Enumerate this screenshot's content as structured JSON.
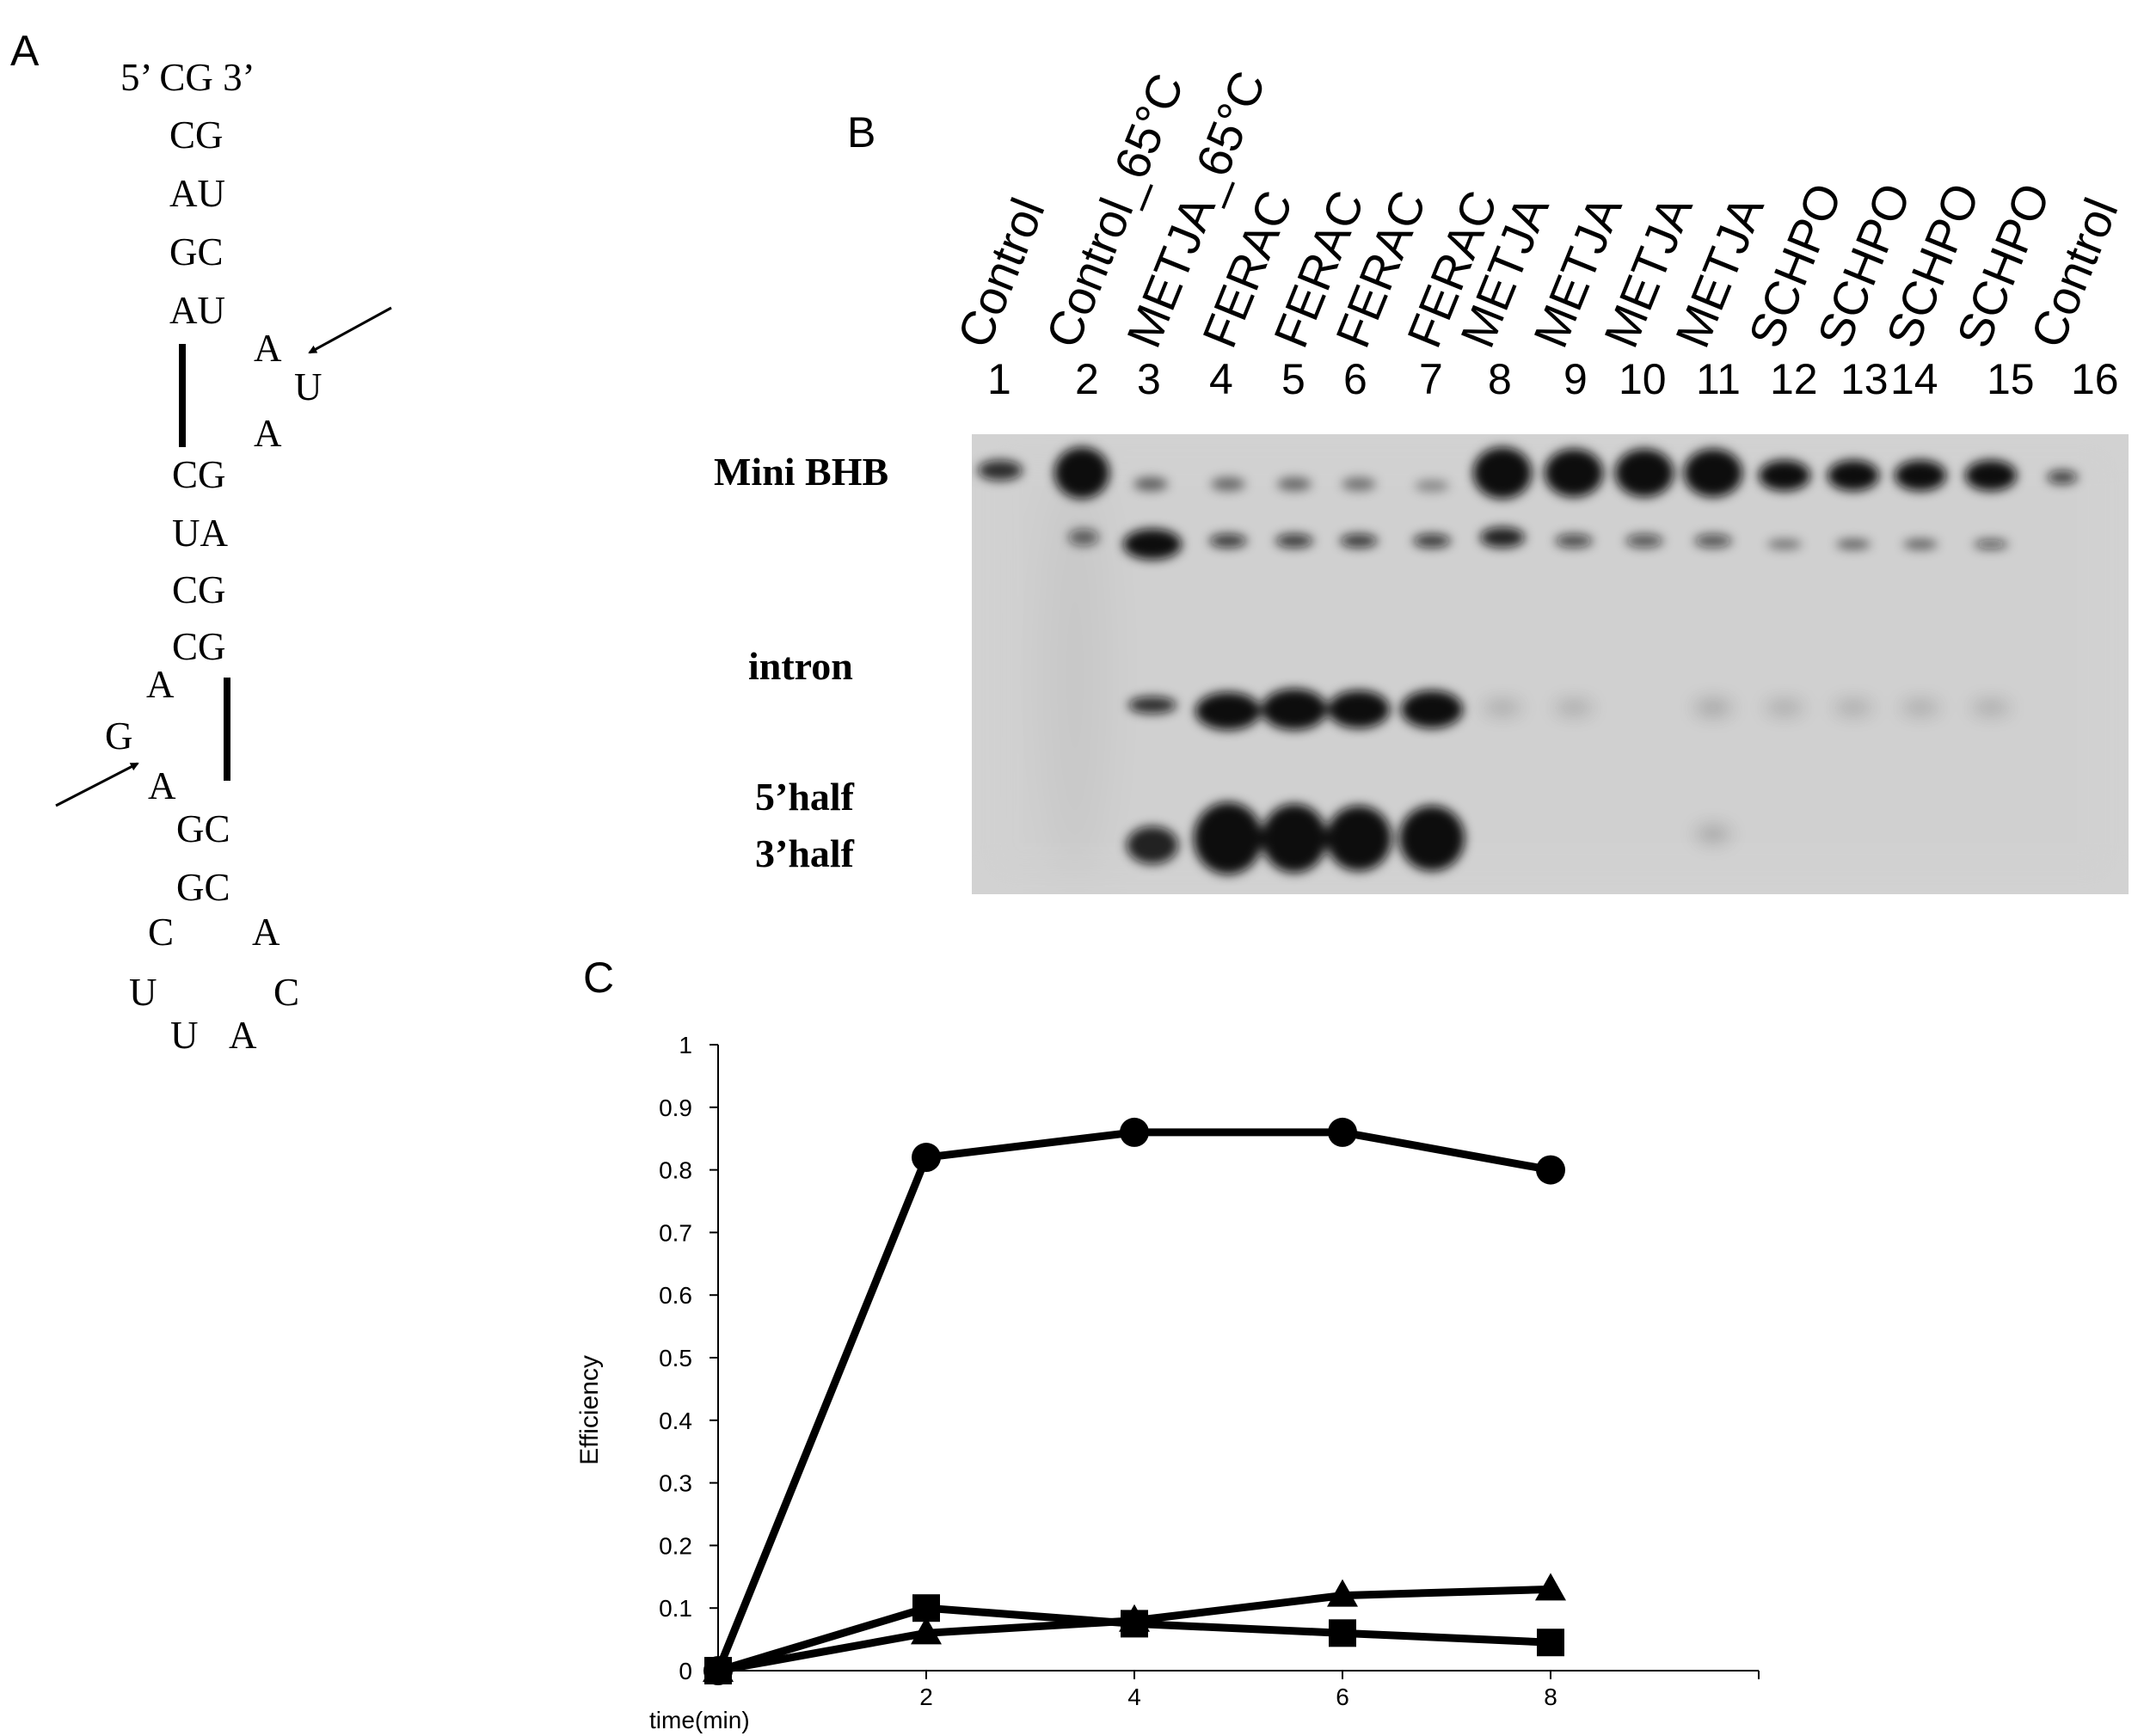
{
  "panels": {
    "a": "A",
    "b": "B",
    "c": "C"
  },
  "rna_structure": {
    "arrows": 2,
    "letters": [
      {
        "t": "5’ CG 3’"
      },
      {
        "t": "CG"
      },
      {
        "t": "AU"
      },
      {
        "t": "GC"
      },
      {
        "t": "AU"
      },
      {
        "t": "A"
      },
      {
        "t": "U"
      },
      {
        "t": "A"
      },
      {
        "t": "CG"
      },
      {
        "t": "UA"
      },
      {
        "t": "CG"
      },
      {
        "t": "CG"
      },
      {
        "t": "A"
      },
      {
        "t": "G"
      },
      {
        "t": "A"
      },
      {
        "t": "GC"
      },
      {
        "t": "GC"
      },
      {
        "t": "C"
      },
      {
        "t": "A"
      },
      {
        "t": "U"
      },
      {
        "t": "C"
      },
      {
        "t": "U"
      },
      {
        "t": "A"
      }
    ]
  },
  "gel": {
    "lanes": [
      {
        "label": "Control",
        "num": "1"
      },
      {
        "label": "Control_65°C",
        "num": "2"
      },
      {
        "label": "METJA_65°C",
        "num": "3"
      },
      {
        "label": "FERAC",
        "num": "4"
      },
      {
        "label": "FERAC",
        "num": "5"
      },
      {
        "label": "FERAC",
        "num": "6"
      },
      {
        "label": "FERAC",
        "num": "7"
      },
      {
        "label": "METJA",
        "num": "8"
      },
      {
        "label": "METJA",
        "num": "9"
      },
      {
        "label": "METJA",
        "num": "10"
      },
      {
        "label": "METJA",
        "num": "11"
      },
      {
        "label": "SCHPO",
        "num": "12"
      },
      {
        "label": "SCHPO",
        "num": "13"
      },
      {
        "label": "SCHPO",
        "num": "14"
      },
      {
        "label": "SCHPO",
        "num": "15"
      },
      {
        "label": "Control",
        "num": "16"
      }
    ],
    "band_labels": [
      "Mini BHB",
      "intron",
      "5’half",
      "3’half"
    ]
  },
  "chart_data": {
    "type": "line",
    "xlabel": "time(min)",
    "ylabel": "Efficiency",
    "xlim": [
      0,
      10
    ],
    "ylim": [
      0,
      1
    ],
    "x_ticks": [
      "2",
      "4",
      "6",
      "8"
    ],
    "x_origin_label": "0",
    "y_ticks": [
      "0",
      "0.1",
      "0.2",
      "0.3",
      "0.4",
      "0.5",
      "0.6",
      "0.7",
      "0.8",
      "0.9",
      "1"
    ],
    "grid": false,
    "legend": false,
    "series": [
      {
        "marker": "circle",
        "x": [
          0,
          2,
          4,
          6,
          8
        ],
        "y": [
          0,
          0.82,
          0.86,
          0.86,
          0.8
        ]
      },
      {
        "marker": "triangle",
        "x": [
          0,
          2,
          4,
          6,
          8
        ],
        "y": [
          0,
          0.06,
          0.08,
          0.12,
          0.13
        ]
      },
      {
        "marker": "square",
        "x": [
          0,
          2,
          4,
          6,
          8
        ],
        "y": [
          0,
          0.1,
          0.075,
          0.06,
          0.045
        ]
      }
    ]
  }
}
